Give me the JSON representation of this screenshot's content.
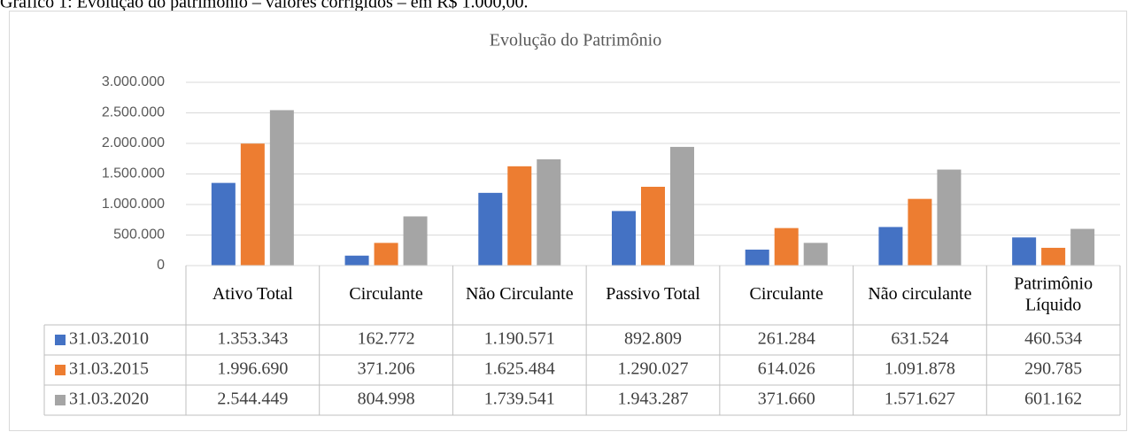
{
  "caption": "Gráfico 1: Evolução do patrimônio – valores corrigidos – em R$ 1.000,00.",
  "chart_data": {
    "type": "bar",
    "title": "Evolução do Patrimônio",
    "categories": [
      "Ativo Total",
      "Circulante",
      "Não Circulante",
      "Passivo Total",
      "Circulante",
      "Não circulante",
      "Patrimônio Líquido"
    ],
    "series": [
      {
        "name": "31.03.2010",
        "color": "#4472c4",
        "values": [
          1353343,
          162772,
          1190571,
          892809,
          261284,
          631524,
          460534
        ],
        "value_labels": [
          "1.353.343",
          "162.772",
          "1.190.571",
          "892.809",
          "261.284",
          "631.524",
          "460.534"
        ]
      },
      {
        "name": "31.03.2015",
        "color": "#ed7d31",
        "values": [
          1996690,
          371206,
          1625484,
          1290027,
          614026,
          1091878,
          290785
        ],
        "value_labels": [
          "1.996.690",
          "371.206",
          "1.625.484",
          "1.290.027",
          "614.026",
          "1.091.878",
          "290.785"
        ]
      },
      {
        "name": "31.03.2020",
        "color": "#a5a5a5",
        "values": [
          2544449,
          804998,
          1739541,
          1943287,
          371660,
          1571627,
          601162
        ],
        "value_labels": [
          "2.544.449",
          "804.998",
          "1.739.541",
          "1.943.287",
          "371.660",
          "1.571.627",
          "601.162"
        ]
      }
    ],
    "ylim": [
      0,
      3000000
    ],
    "yticks": [
      0,
      {
        "value": 500000,
        "label": "500.000"
      },
      {
        "value": 1000000,
        "label": "1.000.000"
      },
      {
        "value": 1500000,
        "label": "1.500.000"
      },
      {
        "value": 2000000,
        "label": "2.000.000"
      },
      {
        "value": 2500000,
        "label": "2.500.000"
      },
      {
        "value": 3000000,
        "label": "3.000.000"
      }
    ],
    "grid": true
  }
}
